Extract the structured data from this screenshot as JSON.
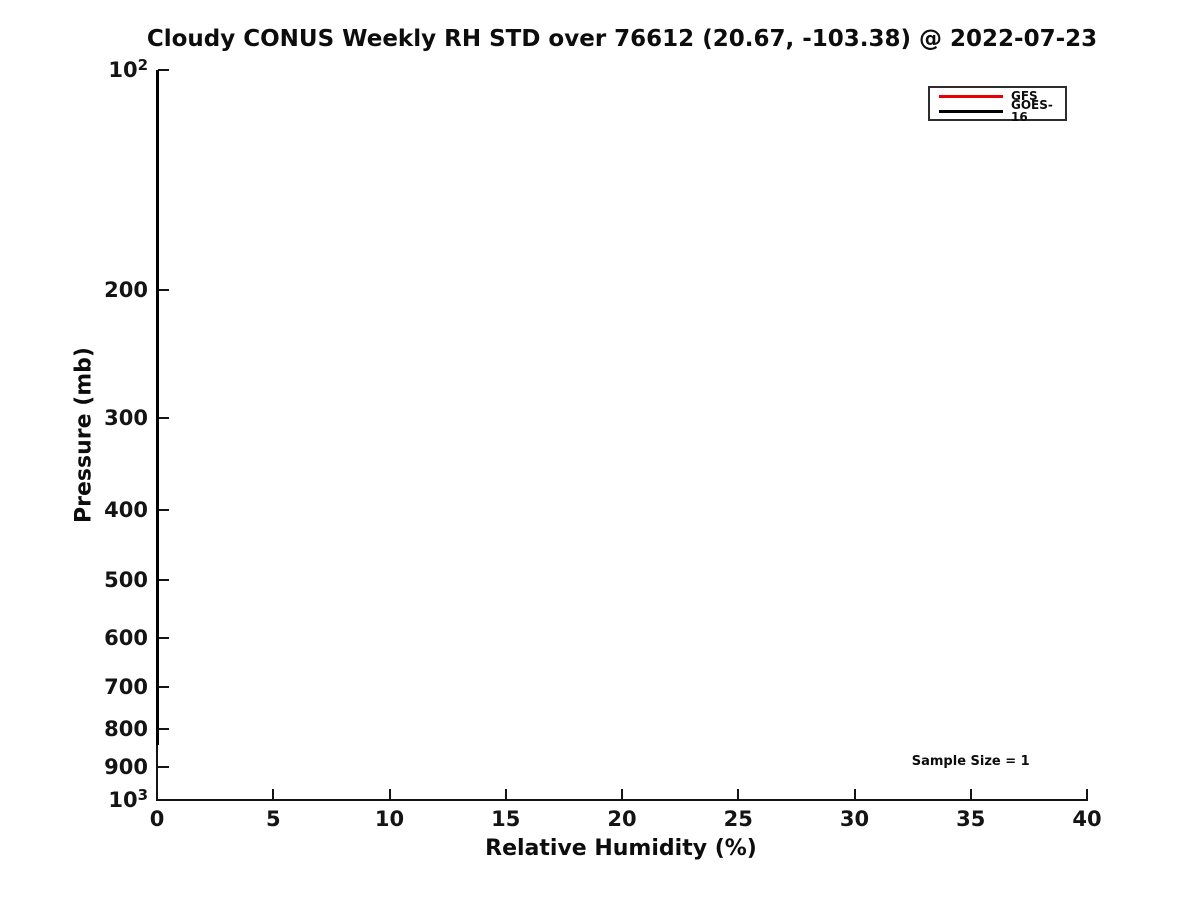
{
  "figure": {
    "title": "Cloudy CONUS Weekly RH STD over 76612 (20.67, -103.38) @ 2022-07-23"
  },
  "chart_data": {
    "type": "line",
    "title": "Cloudy CONUS Weekly RH STD over 76612 (20.67, -103.38) @ 2022-07-23",
    "xlabel": "Relative Humidity (%)",
    "ylabel": "Pressure (mb)",
    "xlim": [
      0,
      40
    ],
    "ylim": [
      100,
      1000
    ],
    "y_scale": "log",
    "y_inverted": true,
    "grid": false,
    "x_ticks": [
      0,
      5,
      10,
      15,
      20,
      25,
      30,
      35,
      40
    ],
    "y_ticks": [
      {
        "value": 100,
        "label": "10^2"
      },
      {
        "value": 200,
        "label": "200"
      },
      {
        "value": 300,
        "label": "300"
      },
      {
        "value": 400,
        "label": "400"
      },
      {
        "value": 500,
        "label": "500"
      },
      {
        "value": 600,
        "label": "600"
      },
      {
        "value": 700,
        "label": "700"
      },
      {
        "value": 800,
        "label": "800"
      },
      {
        "value": 900,
        "label": "900"
      },
      {
        "value": 1000,
        "label": "10^3"
      }
    ],
    "series": [
      {
        "name": "GFS",
        "color": "#e80000",
        "points": [
          {
            "rh": 0,
            "pressure": 100
          },
          {
            "rh": 0,
            "pressure": 840
          }
        ]
      },
      {
        "name": "GOES-16",
        "color": "#000000",
        "points": [
          {
            "rh": 0,
            "pressure": 100
          },
          {
            "rh": 0,
            "pressure": 840
          }
        ]
      }
    ],
    "legend": {
      "position": "top-right",
      "entries": [
        {
          "label": "GFS",
          "color": "#e80000"
        },
        {
          "label": "GOES-16",
          "color": "#000000"
        }
      ]
    },
    "annotations": [
      {
        "text": "Sample Size = 1",
        "rh": 35,
        "pressure": 890
      }
    ]
  }
}
